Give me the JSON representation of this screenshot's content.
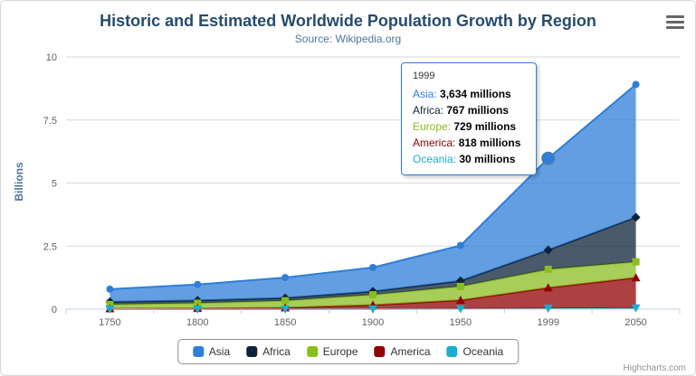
{
  "chart_data": {
    "type": "area",
    "stacking": "normal",
    "title": "Historic and Estimated Worldwide Population Growth by Region",
    "subtitle": "Source: Wikipedia.org",
    "ylabel": "Billions",
    "xlabel": "",
    "categories": [
      "1750",
      "1800",
      "1850",
      "1900",
      "1950",
      "1999",
      "2050"
    ],
    "yticks": [
      "0",
      "2.5",
      "5",
      "7.5",
      "10"
    ],
    "ytick_values": [
      0,
      2.5,
      5,
      7.5,
      10
    ],
    "ylim": [
      0,
      10
    ],
    "grid": true,
    "legend_position": "bottom",
    "values_unit": "millions",
    "series": [
      {
        "name": "Asia",
        "color": "#2f7ed8",
        "marker": "circle",
        "values": [
          502,
          635,
          809,
          947,
          1402,
          3634,
          5268
        ]
      },
      {
        "name": "Africa",
        "color": "#0d233a",
        "marker": "diamond",
        "values": [
          106,
          107,
          111,
          133,
          221,
          767,
          1766
        ]
      },
      {
        "name": "Europe",
        "color": "#8bbc21",
        "marker": "square",
        "values": [
          163,
          203,
          276,
          408,
          547,
          729,
          628
        ]
      },
      {
        "name": "America",
        "color": "#910000",
        "marker": "triangle",
        "values": [
          18,
          31,
          54,
          156,
          339,
          818,
          1201
        ]
      },
      {
        "name": "Oceania",
        "color": "#1aadce",
        "marker": "triangle-down",
        "values": [
          2,
          2,
          2,
          6,
          13,
          30,
          46
        ]
      }
    ]
  },
  "tooltip": {
    "header": "1999",
    "hover_series": "Asia",
    "hover_category_index": 5,
    "rows": [
      {
        "series": "Asia",
        "value": "3,634 millions"
      },
      {
        "series": "Africa",
        "value": "767 millions"
      },
      {
        "series": "Europe",
        "value": "729 millions"
      },
      {
        "series": "America",
        "value": "818 millions"
      },
      {
        "series": "Oceania",
        "value": "30 millions"
      }
    ]
  },
  "credits": "Highcharts.com"
}
